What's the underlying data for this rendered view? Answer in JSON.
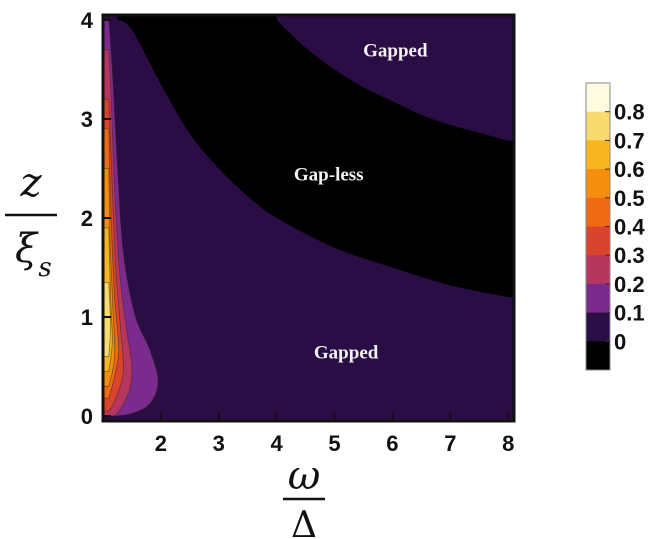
{
  "chart_data": {
    "type": "heatmap",
    "title": "",
    "xlim": [
      1.0,
      8.1
    ],
    "ylim": [
      -0.05,
      4.05
    ],
    "x_ticks": [
      "2",
      "3",
      "4",
      "5",
      "6",
      "7",
      "8"
    ],
    "y_ticks": [
      "0",
      "1",
      "2",
      "3",
      "4"
    ],
    "xlabel": {
      "numerator": "ω",
      "denominator": "Δ"
    },
    "ylabel": {
      "numerator": "z",
      "denominator": "ξ",
      "denominator_sub": "s"
    },
    "colorbar": {
      "ticks": [
        "0.8",
        "0.7",
        "0.6",
        "0.5",
        "0.4",
        "0.3",
        "0.2",
        "0.1",
        "0"
      ],
      "levels": [
        0,
        0.1,
        0.2,
        0.3,
        0.4,
        0.5,
        0.6,
        0.7,
        0.8,
        0.9
      ],
      "colors": [
        "#000000",
        "#2a0d45",
        "#7b2a8e",
        "#b5365f",
        "#d8442e",
        "#ee6a14",
        "#f58e0f",
        "#f7b61f",
        "#f8db6e",
        "#fffbe0"
      ]
    },
    "annotations": [
      {
        "text": "Gapped",
        "x": 6.05,
        "y": 3.7
      },
      {
        "text": "Gap-less",
        "x": 4.9,
        "y": 2.45
      },
      {
        "text": "Gapped",
        "x": 5.2,
        "y": 0.65
      }
    ],
    "gapless_boundaries": {
      "upper": [
        [
          4.0,
          4.0
        ],
        [
          4.5,
          3.72
        ],
        [
          5.0,
          3.5
        ],
        [
          5.5,
          3.32
        ],
        [
          6.0,
          3.18
        ],
        [
          6.5,
          3.04
        ],
        [
          7.0,
          2.94
        ],
        [
          7.5,
          2.86
        ],
        [
          8.0,
          2.78
        ]
      ],
      "lower": [
        [
          1.25,
          4.0
        ],
        [
          1.5,
          3.9
        ],
        [
          2.0,
          3.35
        ],
        [
          2.5,
          2.85
        ],
        [
          3.0,
          2.5
        ],
        [
          3.5,
          2.22
        ],
        [
          4.0,
          2.0
        ],
        [
          5.0,
          1.7
        ],
        [
          6.0,
          1.5
        ],
        [
          7.0,
          1.32
        ],
        [
          8.0,
          1.2
        ]
      ]
    },
    "low_omega_contours": [
      {
        "level": 0.2,
        "points": [
          [
            1.1,
            0.0
          ],
          [
            1.45,
            0.02
          ],
          [
            1.8,
            0.12
          ],
          [
            1.95,
            0.35
          ],
          [
            1.8,
            0.68
          ],
          [
            1.55,
            1.02
          ],
          [
            1.35,
            1.65
          ],
          [
            1.25,
            2.5
          ],
          [
            1.17,
            3.4
          ],
          [
            1.1,
            4.0
          ]
        ]
      },
      {
        "level": 0.3,
        "points": [
          [
            1.1,
            0.0
          ],
          [
            1.25,
            0.03
          ],
          [
            1.45,
            0.25
          ],
          [
            1.5,
            0.5
          ],
          [
            1.4,
            0.9
          ],
          [
            1.28,
            1.5
          ],
          [
            1.2,
            2.3
          ],
          [
            1.14,
            3.2
          ],
          [
            1.1,
            3.7
          ]
        ]
      },
      {
        "level": 0.4,
        "points": [
          [
            1.1,
            0.05
          ],
          [
            1.2,
            0.15
          ],
          [
            1.35,
            0.45
          ],
          [
            1.3,
            0.9
          ],
          [
            1.22,
            1.5
          ],
          [
            1.16,
            2.3
          ],
          [
            1.1,
            3.2
          ]
        ]
      },
      {
        "level": 0.5,
        "points": [
          [
            1.1,
            0.18
          ],
          [
            1.22,
            0.45
          ],
          [
            1.27,
            0.7
          ],
          [
            1.2,
            1.2
          ],
          [
            1.14,
            2.0
          ],
          [
            1.1,
            2.9
          ]
        ]
      },
      {
        "level": 0.6,
        "points": [
          [
            1.1,
            0.3
          ],
          [
            1.2,
            0.6
          ],
          [
            1.17,
            1.1
          ],
          [
            1.12,
            1.8
          ],
          [
            1.1,
            2.5
          ]
        ]
      },
      {
        "level": 0.7,
        "points": [
          [
            1.1,
            0.45
          ],
          [
            1.16,
            0.75
          ],
          [
            1.13,
            1.2
          ],
          [
            1.1,
            1.9
          ]
        ]
      },
      {
        "level": 0.8,
        "points": [
          [
            1.1,
            0.6
          ],
          [
            1.13,
            0.9
          ],
          [
            1.1,
            1.35
          ]
        ]
      }
    ]
  }
}
